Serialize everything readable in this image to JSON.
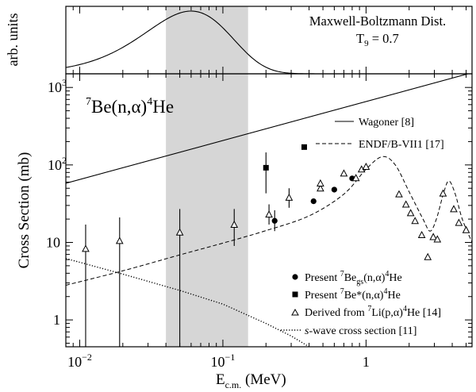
{
  "figure": {
    "top_panel": {
      "ylabel": "arb. units",
      "annotation_line1": "Maxwell-Boltzmann Dist.",
      "annotation_line2": "T",
      "annotation_line2_sub": "9",
      "annotation_line2_tail": " = 0.7"
    },
    "main_panel": {
      "reaction": {
        "pre_sup": "7",
        "main": "Be(n,",
        "alpha": "α",
        "close": ")",
        "post_sup": "4",
        "tail": "He"
      },
      "ylabel": "Cross Section (mb)",
      "xlabel_main": "E",
      "xlabel_sub": "c.m.",
      "xlabel_unit": " (MeV)",
      "xtick_labels": [
        {
          "base": "10",
          "exp": "−2",
          "value": 0.01
        },
        {
          "base": "10",
          "exp": "−1",
          "value": 0.1
        },
        {
          "base": "1",
          "exp": "",
          "value": 1
        }
      ],
      "ytick_labels": [
        {
          "base": "1",
          "exp": "",
          "value": 1
        },
        {
          "base": "10",
          "exp": "",
          "value": 10
        },
        {
          "base": "10",
          "exp": "2",
          "value": 100
        },
        {
          "base": "10",
          "exp": "3",
          "value": 1000
        }
      ],
      "legend_top": [
        {
          "label": "Wagoner [8]",
          "style": "solid"
        },
        {
          "label": "ENDF/B-VII1 [17]",
          "style": "dashed"
        }
      ],
      "legend_bottom": [
        {
          "marker": "circle",
          "parts": [
            "Present ",
            "7",
            "Be",
            "gs",
            "(n,",
            "α",
            ")",
            "4",
            "He"
          ]
        },
        {
          "marker": "square",
          "parts": [
            "Present ",
            "7",
            "Be*(n,",
            "α",
            ")",
            "4",
            "He"
          ]
        },
        {
          "marker": "triangle",
          "parts": [
            "Derived from ",
            "7",
            "Li(p,",
            "α",
            ")",
            "4",
            "He [14]"
          ]
        },
        {
          "marker": "dotted",
          "parts": [
            "s",
            "-wave cross section [11]"
          ]
        }
      ]
    }
  },
  "chart_data": {
    "type": "scatter",
    "title": "",
    "x_scale": "log",
    "y_scale": "log",
    "xlim": [
      0.008,
      5.5
    ],
    "ylim": [
      0.45,
      1500
    ],
    "shaded_band_x": [
      0.04,
      0.15
    ],
    "maxwell_boltzmann": {
      "T9": 0.7,
      "peak_x": 0.06,
      "description_units": "arb. units"
    },
    "series": [
      {
        "name": "Wagoner [8]",
        "kind": "line",
        "points": [
          [
            0.008,
            58
          ],
          [
            5.5,
            1550
          ]
        ]
      },
      {
        "name": "ENDF/B-VII1 [17]",
        "kind": "dashed_line",
        "points": [
          [
            0.008,
            2.8
          ],
          [
            0.02,
            4.3
          ],
          [
            0.05,
            6.9
          ],
          [
            0.1,
            9.8
          ],
          [
            0.2,
            14.2
          ],
          [
            0.4,
            22
          ],
          [
            0.7,
            42
          ],
          [
            1.0,
            88
          ],
          [
            1.3,
            128
          ],
          [
            1.6,
            100
          ],
          [
            2.0,
            45
          ],
          [
            2.5,
            20
          ],
          [
            2.8,
            14
          ],
          [
            3.1,
            20
          ],
          [
            3.5,
            45
          ],
          [
            3.8,
            62
          ],
          [
            4.2,
            42
          ],
          [
            4.7,
            20
          ],
          [
            5.5,
            10
          ]
        ]
      },
      {
        "name": "s-wave cross section [11]",
        "kind": "dotted_line",
        "points": [
          [
            0.008,
            6.2
          ],
          [
            0.02,
            3.9
          ],
          [
            0.05,
            2.4
          ],
          [
            0.1,
            1.6
          ],
          [
            0.2,
            0.9
          ],
          [
            0.3,
            0.62
          ],
          [
            0.4,
            0.45
          ]
        ]
      },
      {
        "name": "Present 7Be_gs(n,α)4He",
        "kind": "circle",
        "points": [
          {
            "x": 0.23,
            "y": 19,
            "err_lo": 14,
            "err_hi": 26
          },
          {
            "x": 0.43,
            "y": 34
          },
          {
            "x": 0.6,
            "y": 48
          },
          {
            "x": 0.8,
            "y": 67
          }
        ]
      },
      {
        "name": "Present 7Be*(n,α)4He",
        "kind": "square",
        "points": [
          {
            "x": 0.2,
            "y": 92,
            "err_lo": 43,
            "err_hi": 145
          },
          {
            "x": 0.37,
            "y": 170
          }
        ]
      },
      {
        "name": "Derived from 7Li(p,α)4He [14]",
        "kind": "triangle",
        "points": [
          {
            "x": 0.011,
            "y": 8.3,
            "err_lo": 0.3,
            "err_hi": 17
          },
          {
            "x": 0.019,
            "y": 10.5,
            "err_lo": 0.3,
            "err_hi": 21
          },
          {
            "x": 0.05,
            "y": 13.5,
            "err_lo": 0.3,
            "err_hi": 27
          },
          {
            "x": 0.12,
            "y": 17,
            "err_lo": 9,
            "err_hi": 27
          },
          {
            "x": 0.21,
            "y": 23,
            "err_lo": 17,
            "err_hi": 31
          },
          {
            "x": 0.29,
            "y": 38,
            "err_lo": 28,
            "err_hi": 50
          },
          {
            "x": 0.48,
            "y": 50
          },
          {
            "x": 0.48,
            "y": 58
          },
          {
            "x": 0.7,
            "y": 78
          },
          {
            "x": 0.85,
            "y": 68
          },
          {
            "x": 0.93,
            "y": 88
          },
          {
            "x": 1.0,
            "y": 95
          },
          {
            "x": 1.7,
            "y": 42
          },
          {
            "x": 1.9,
            "y": 31
          },
          {
            "x": 2.05,
            "y": 24
          },
          {
            "x": 2.2,
            "y": 19
          },
          {
            "x": 2.45,
            "y": 12.5
          },
          {
            "x": 2.7,
            "y": 6.5
          },
          {
            "x": 2.95,
            "y": 11.8
          },
          {
            "x": 3.15,
            "y": 11
          },
          {
            "x": 3.45,
            "y": 43
          },
          {
            "x": 4.1,
            "y": 27
          },
          {
            "x": 4.45,
            "y": 18
          },
          {
            "x": 5.0,
            "y": 14.5
          }
        ]
      }
    ]
  }
}
